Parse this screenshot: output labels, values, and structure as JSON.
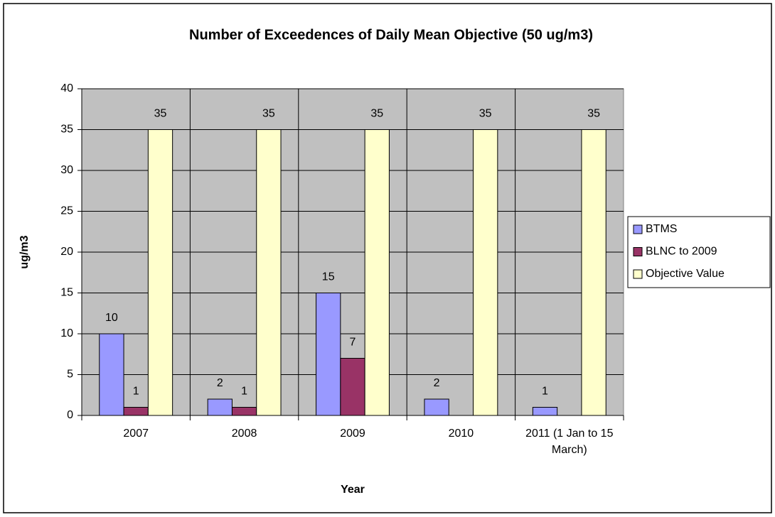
{
  "chart_data": {
    "type": "bar",
    "title": "Number of Exceedences of Daily Mean Objective (50 ug/m3)",
    "x_label": "Year",
    "y_label": "ug/m3",
    "categories": [
      "2007",
      "2008",
      "2009",
      "2010",
      "2011 (1 Jan to 15 March)"
    ],
    "series": [
      {
        "name": "BTMS",
        "color": "#9999ff",
        "values": [
          10,
          2,
          15,
          2,
          1
        ]
      },
      {
        "name": "BLNC to 2009",
        "color": "#993366",
        "values": [
          1,
          1,
          7,
          null,
          null
        ]
      },
      {
        "name": "Objective Value",
        "color": "#ffffcc",
        "values": [
          35,
          35,
          35,
          35,
          35
        ]
      }
    ],
    "ylim": [
      0,
      40
    ],
    "yticks": [
      0,
      5,
      10,
      15,
      20,
      25,
      30,
      35,
      40
    ],
    "grid": true,
    "legend": "right"
  }
}
